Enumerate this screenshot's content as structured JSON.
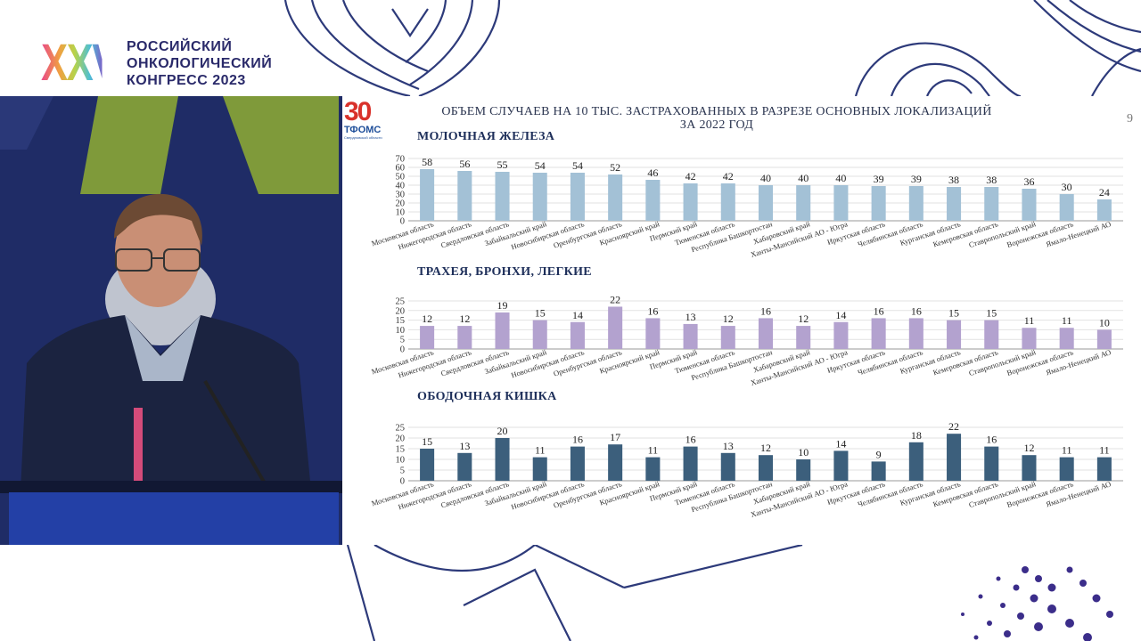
{
  "congress": {
    "logo_mark": "XXVII",
    "name_lines": [
      "РОССИЙСКИЙ",
      "ОНКОЛОГИЧЕСКИЙ",
      "КОНГРЕСС 2023"
    ]
  },
  "slide": {
    "title_line1": "ОБЪЕМ СЛУЧАЕВ НА 10 ТЫС. ЗАСТРАХОВАННЫХ В РАЗРЕЗЕ ОСНОВНЫХ ЛОКАЛИЗАЦИЙ",
    "title_line2": "ЗА 2022 ГОД",
    "page_number": "9",
    "org_logo_number": "30",
    "org_logo_name": "ТФОМС",
    "org_logo_sub": "Свердловской области"
  },
  "chart_data": [
    {
      "type": "bar",
      "title": "МОЛОЧНАЯ ЖЕЛЕЗА",
      "color": "#a3c1d6",
      "categories": [
        "Московская область",
        "Нижегородская область",
        "Свердловская область",
        "Забайкальский край",
        "Новосибирская область",
        "Оренбургская область",
        "Красноярский край",
        "Пермский край",
        "Тюменская область",
        "Республика Башкортостан",
        "Хабаровский край",
        "Ханты-Мансийский АО - Югра",
        "Иркутская область",
        "Челябинская область",
        "Курганская область",
        "Кемеровская область",
        "Ставропольский край",
        "Воронежская область",
        "Ямало-Ненецкий АО"
      ],
      "values": [
        58,
        56,
        55,
        54,
        54,
        52,
        46,
        42,
        42,
        40,
        40,
        40,
        39,
        39,
        38,
        38,
        36,
        30,
        24
      ],
      "ylim": [
        0,
        70
      ],
      "yticks": [
        0,
        10,
        20,
        30,
        40,
        50,
        60,
        70
      ],
      "grid": true
    },
    {
      "type": "bar",
      "title": "ТРАХЕЯ, БРОНХИ, ЛЕГКИЕ",
      "color": "#b3a2cf",
      "categories": [
        "Московская область",
        "Нижегородская область",
        "Свердловская область",
        "Забайкальский край",
        "Новосибирская область",
        "Оренбургская область",
        "Красноярский край",
        "Пермский край",
        "Тюменская область",
        "Республика Башкортостан",
        "Хабаровский край",
        "Ханты-Мансийский АО - Югра",
        "Иркутская область",
        "Челябинская область",
        "Курганская область",
        "Кемеровская область",
        "Ставропольский край",
        "Воронежская область",
        "Ямало-Ненецкий АО"
      ],
      "values": [
        12,
        12,
        19,
        15,
        14,
        22,
        16,
        13,
        12,
        16,
        12,
        14,
        16,
        16,
        15,
        15,
        11,
        11,
        10
      ],
      "ylim": [
        0,
        25
      ],
      "yticks": [
        0,
        5,
        10,
        15,
        20,
        25
      ],
      "grid": true
    },
    {
      "type": "bar",
      "title": "ОБОДОЧНАЯ КИШКА",
      "color": "#3c5f7c",
      "categories": [
        "Московская область",
        "Нижегородская область",
        "Свердловская область",
        "Забайкальский край",
        "Новосибирская область",
        "Оренбургская область",
        "Красноярский край",
        "Пермский край",
        "Тюменская область",
        "Республика Башкортостан",
        "Хабаровский край",
        "Ханты-Мансийский АО - Югра",
        "Иркутская область",
        "Челябинская область",
        "Курганская область",
        "Кемеровская область",
        "Ставропольский край",
        "Воронежская область",
        "Ямало-Ненецкий АО"
      ],
      "values": [
        15,
        13,
        20,
        11,
        16,
        17,
        11,
        16,
        13,
        12,
        10,
        14,
        9,
        18,
        22,
        16,
        12,
        11,
        11
      ],
      "ylim": [
        0,
        25
      ],
      "yticks": [
        0,
        5,
        10,
        15,
        20,
        25
      ],
      "grid": true
    }
  ]
}
